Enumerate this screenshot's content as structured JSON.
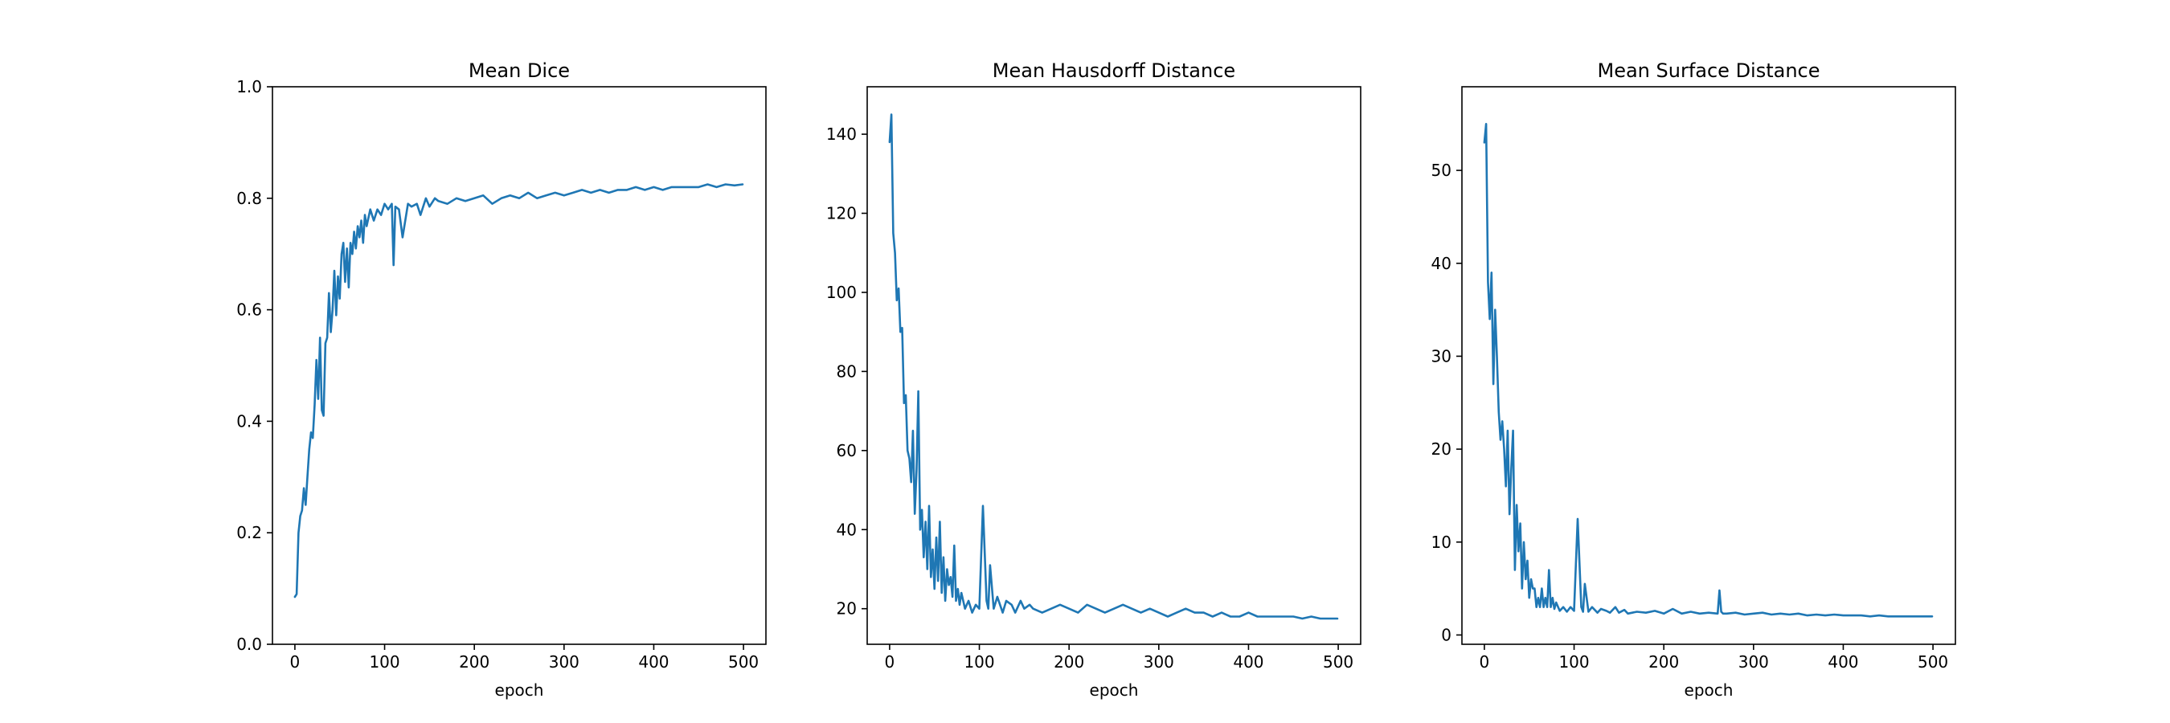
{
  "chart_data": [
    {
      "type": "line",
      "title": "Mean Dice",
      "xlabel": "epoch",
      "ylabel": "",
      "xlim": [
        -25,
        525
      ],
      "ylim": [
        0.0,
        1.0
      ],
      "xticks": [
        0,
        100,
        200,
        300,
        400,
        500
      ],
      "yticks": [
        0.0,
        0.2,
        0.4,
        0.6,
        0.8,
        1.0
      ],
      "ytick_labels": [
        "0.0",
        "0.2",
        "0.4",
        "0.6",
        "0.8",
        "1.0"
      ],
      "grid": false,
      "line_color": "#1f77b4",
      "series": [
        {
          "x": [
            0,
            2,
            4,
            6,
            8,
            10,
            12,
            14,
            16,
            18,
            20,
            22,
            24,
            26,
            28,
            30,
            32,
            34,
            36,
            38,
            40,
            42,
            44,
            46,
            48,
            50,
            52,
            54,
            56,
            58,
            60,
            62,
            64,
            66,
            68,
            70,
            72,
            74,
            76,
            78,
            80,
            84,
            88,
            92,
            96,
            100,
            104,
            108,
            110,
            112,
            116,
            120,
            126,
            130,
            136,
            140,
            146,
            150,
            156,
            160,
            170,
            180,
            190,
            200,
            210,
            220,
            230,
            240,
            250,
            260,
            270,
            280,
            290,
            300,
            310,
            320,
            330,
            340,
            350,
            360,
            370,
            380,
            390,
            400,
            410,
            420,
            430,
            440,
            450,
            460,
            470,
            480,
            490,
            499
          ],
          "values": [
            0.085,
            0.09,
            0.2,
            0.23,
            0.24,
            0.28,
            0.25,
            0.3,
            0.35,
            0.38,
            0.37,
            0.43,
            0.51,
            0.44,
            0.55,
            0.42,
            0.41,
            0.54,
            0.55,
            0.63,
            0.56,
            0.6,
            0.67,
            0.59,
            0.66,
            0.62,
            0.7,
            0.72,
            0.65,
            0.71,
            0.64,
            0.72,
            0.7,
            0.74,
            0.71,
            0.75,
            0.73,
            0.76,
            0.72,
            0.77,
            0.75,
            0.78,
            0.76,
            0.78,
            0.77,
            0.79,
            0.78,
            0.79,
            0.68,
            0.785,
            0.78,
            0.73,
            0.79,
            0.785,
            0.79,
            0.77,
            0.8,
            0.785,
            0.8,
            0.795,
            0.79,
            0.8,
            0.795,
            0.8,
            0.805,
            0.79,
            0.8,
            0.805,
            0.8,
            0.81,
            0.8,
            0.805,
            0.81,
            0.805,
            0.81,
            0.815,
            0.81,
            0.815,
            0.81,
            0.815,
            0.815,
            0.82,
            0.815,
            0.82,
            0.815,
            0.82,
            0.82,
            0.82,
            0.82,
            0.825,
            0.82,
            0.825,
            0.823,
            0.825
          ]
        }
      ]
    },
    {
      "type": "line",
      "title": "Mean Hausdorff Distance",
      "xlabel": "epoch",
      "ylabel": "",
      "xlim": [
        -25,
        525
      ],
      "ylim": [
        11,
        152
      ],
      "xticks": [
        0,
        100,
        200,
        300,
        400,
        500
      ],
      "yticks": [
        20,
        40,
        60,
        80,
        100,
        120,
        140
      ],
      "ytick_labels": [
        "20",
        "40",
        "60",
        "80",
        "100",
        "120",
        "140"
      ],
      "grid": false,
      "line_color": "#1f77b4",
      "series": [
        {
          "x": [
            0,
            2,
            4,
            6,
            8,
            10,
            12,
            14,
            16,
            18,
            20,
            22,
            24,
            26,
            28,
            30,
            32,
            34,
            36,
            38,
            40,
            42,
            44,
            46,
            48,
            50,
            52,
            54,
            56,
            58,
            60,
            62,
            64,
            66,
            68,
            70,
            72,
            74,
            76,
            78,
            80,
            84,
            88,
            92,
            96,
            100,
            104,
            108,
            110,
            112,
            116,
            120,
            126,
            130,
            136,
            140,
            146,
            150,
            156,
            160,
            170,
            180,
            190,
            200,
            210,
            220,
            230,
            240,
            250,
            260,
            270,
            280,
            290,
            300,
            310,
            320,
            330,
            340,
            350,
            360,
            370,
            380,
            390,
            400,
            410,
            420,
            430,
            440,
            450,
            460,
            470,
            480,
            490,
            499
          ],
          "values": [
            138,
            145,
            115,
            110,
            98,
            101,
            90,
            91,
            72,
            74,
            60,
            58,
            52,
            65,
            44,
            55,
            75,
            40,
            45,
            33,
            42,
            30,
            46,
            28,
            35,
            25,
            38,
            27,
            42,
            24,
            33,
            22,
            30,
            26,
            28,
            23,
            36,
            22,
            25,
            21,
            24,
            20,
            22,
            19,
            21,
            20,
            46,
            22,
            20,
            31,
            20,
            23,
            19,
            22,
            21,
            19,
            22,
            20,
            21,
            20,
            19,
            20,
            21,
            20,
            19,
            21,
            20,
            19,
            20,
            21,
            20,
            19,
            20,
            19,
            18,
            19,
            20,
            19,
            19,
            18,
            19,
            18,
            18,
            19,
            18,
            18,
            18,
            18,
            18,
            17.5,
            18,
            17.5,
            17.5,
            17.5
          ]
        }
      ]
    },
    {
      "type": "line",
      "title": "Mean Surface Distance",
      "xlabel": "epoch",
      "ylabel": "",
      "xlim": [
        -25,
        525
      ],
      "ylim": [
        -1,
        59
      ],
      "xticks": [
        0,
        100,
        200,
        300,
        400,
        500
      ],
      "yticks": [
        0,
        10,
        20,
        30,
        40,
        50
      ],
      "ytick_labels": [
        "0",
        "10",
        "20",
        "30",
        "40",
        "50"
      ],
      "grid": false,
      "line_color": "#1f77b4",
      "series": [
        {
          "x": [
            0,
            2,
            4,
            6,
            8,
            10,
            12,
            14,
            16,
            18,
            20,
            22,
            24,
            26,
            28,
            30,
            32,
            34,
            36,
            38,
            40,
            42,
            44,
            46,
            48,
            50,
            52,
            54,
            56,
            58,
            60,
            62,
            64,
            66,
            68,
            70,
            72,
            74,
            76,
            78,
            80,
            84,
            88,
            92,
            96,
            100,
            104,
            108,
            110,
            112,
            116,
            120,
            126,
            130,
            136,
            140,
            146,
            150,
            156,
            160,
            170,
            180,
            190,
            200,
            210,
            220,
            230,
            240,
            250,
            260,
            262,
            264,
            266,
            270,
            280,
            290,
            300,
            310,
            320,
            330,
            340,
            350,
            360,
            370,
            380,
            390,
            400,
            410,
            420,
            430,
            440,
            450,
            460,
            470,
            480,
            490,
            499
          ],
          "values": [
            53,
            55,
            38,
            34,
            39,
            27,
            35,
            30,
            24,
            21,
            23,
            20,
            16,
            22,
            13,
            18,
            22,
            7,
            14,
            9,
            12,
            5,
            10,
            6,
            8,
            4,
            6,
            5,
            5,
            3,
            4,
            3,
            5,
            3,
            4,
            3,
            7,
            3,
            4,
            2.8,
            3.5,
            2.6,
            3,
            2.5,
            3,
            2.6,
            12.5,
            3,
            2.5,
            5.5,
            2.5,
            3,
            2.4,
            2.8,
            2.6,
            2.4,
            3,
            2.4,
            2.7,
            2.3,
            2.5,
            2.4,
            2.6,
            2.3,
            2.8,
            2.3,
            2.5,
            2.3,
            2.4,
            2.3,
            4.8,
            2.5,
            2.3,
            2.3,
            2.4,
            2.2,
            2.3,
            2.4,
            2.2,
            2.3,
            2.2,
            2.3,
            2.1,
            2.2,
            2.1,
            2.2,
            2.1,
            2.1,
            2.1,
            2.0,
            2.1,
            2.0,
            2.0,
            2.0,
            2.0,
            2.0,
            2.0
          ]
        }
      ]
    }
  ]
}
